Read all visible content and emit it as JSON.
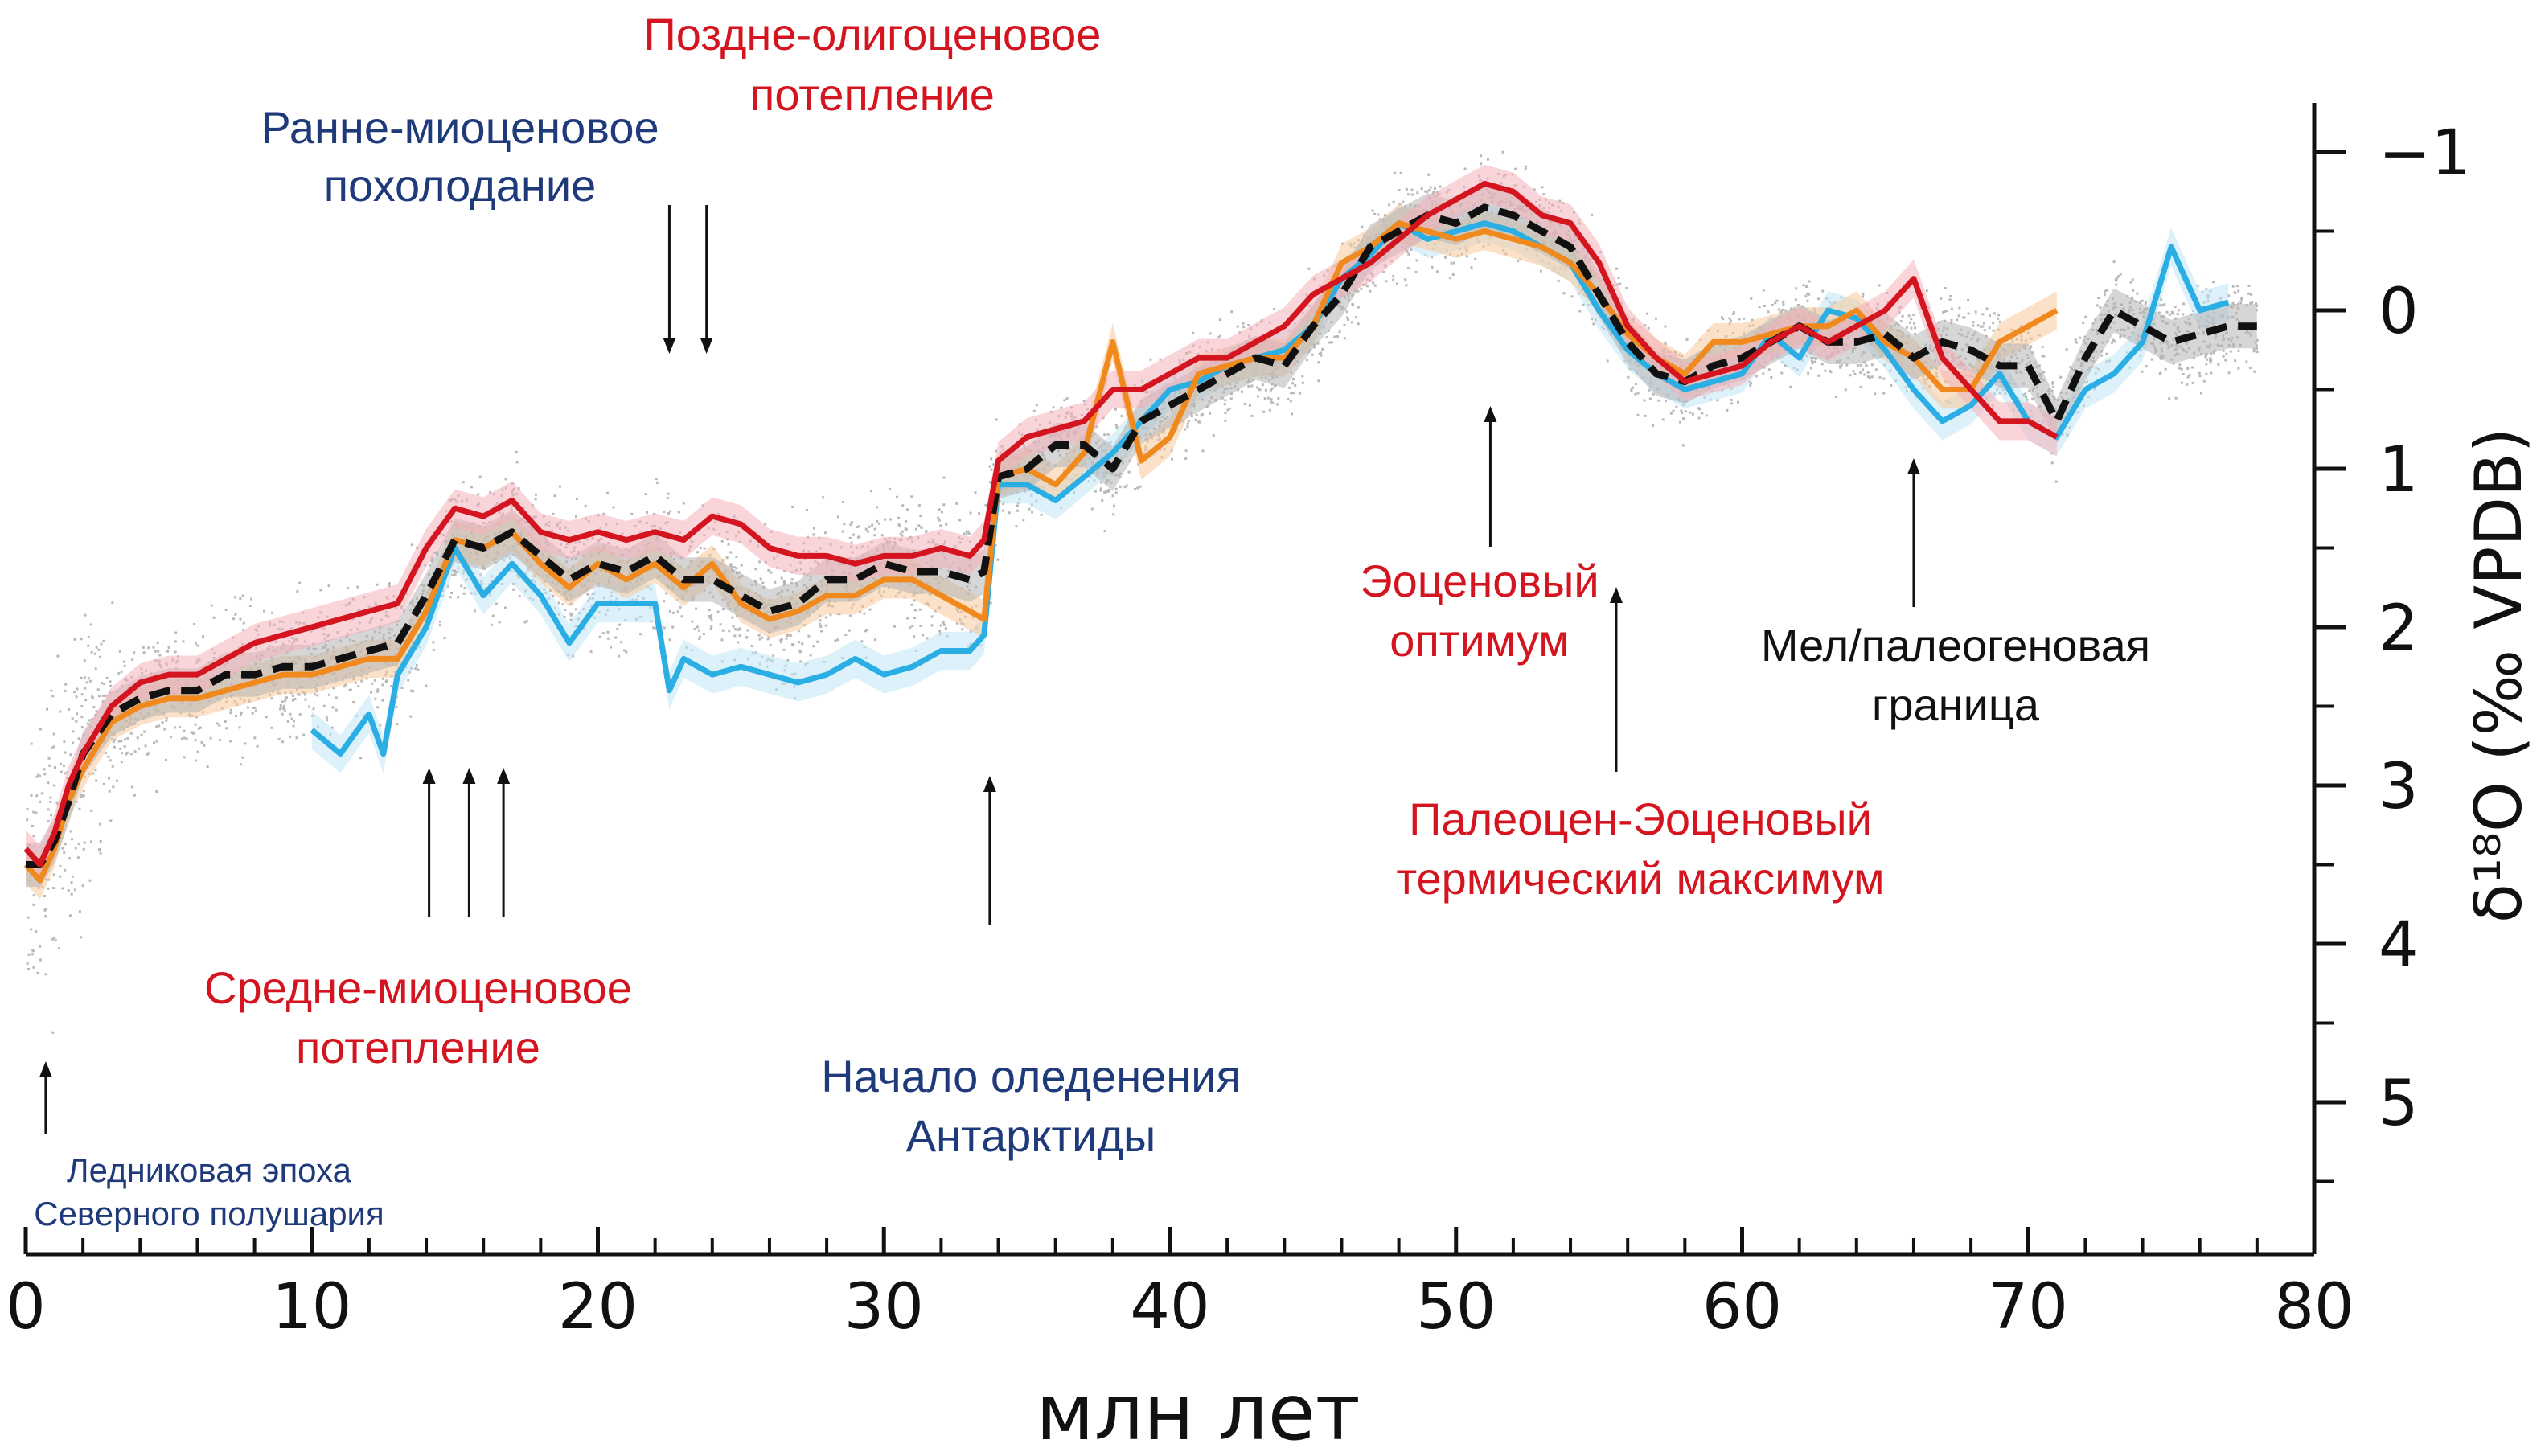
{
  "colors": {
    "red": "#d4141e",
    "black": "#111111",
    "orange": "#f08a1e",
    "cyan": "#2aaee3",
    "gray": "#a0a0a0",
    "navy": "#1f3a7a"
  },
  "chart_data": {
    "type": "line",
    "xlabel": "млн лет",
    "ylabel": "δ¹⁸O (‰ VPDB)",
    "x_ticks": [
      "0",
      "10",
      "20",
      "30",
      "40",
      "50",
      "60",
      "70",
      "80"
    ],
    "y_ticks": [
      "−1",
      "0",
      "1",
      "2",
      "3",
      "4",
      "5"
    ],
    "xlim": [
      0,
      80
    ],
    "ylim": [
      -1.5,
      5.9
    ],
    "y_inverted": true,
    "series": [
      {
        "color": "red",
        "x": [
          0,
          0.5,
          1,
          1.5,
          2,
          3,
          4,
          5,
          6,
          7,
          8,
          9,
          10,
          11,
          12,
          13,
          14,
          15,
          16,
          17,
          18,
          19,
          20,
          21,
          22,
          23,
          24,
          25,
          26,
          27,
          28,
          29,
          30,
          31,
          32,
          33,
          33.5,
          34,
          35,
          36,
          37,
          38,
          39,
          40,
          41,
          42,
          43,
          44,
          45,
          46,
          47,
          48,
          49,
          50,
          51,
          52,
          53,
          54,
          55,
          56,
          57,
          58,
          59,
          60,
          61,
          62,
          63,
          64,
          65,
          66,
          67,
          68,
          69,
          70,
          71
        ],
        "y": [
          3.4,
          3.5,
          3.3,
          3.0,
          2.8,
          2.5,
          2.35,
          2.3,
          2.3,
          2.2,
          2.1,
          2.05,
          2.0,
          1.95,
          1.9,
          1.85,
          1.5,
          1.25,
          1.3,
          1.2,
          1.4,
          1.45,
          1.4,
          1.45,
          1.4,
          1.45,
          1.3,
          1.35,
          1.5,
          1.55,
          1.55,
          1.6,
          1.55,
          1.55,
          1.5,
          1.55,
          1.45,
          0.95,
          0.8,
          0.75,
          0.7,
          0.5,
          0.5,
          0.4,
          0.3,
          0.3,
          0.2,
          0.1,
          -0.1,
          -0.2,
          -0.3,
          -0.45,
          -0.6,
          -0.7,
          -0.8,
          -0.75,
          -0.6,
          -0.55,
          -0.3,
          0.1,
          0.3,
          0.45,
          0.4,
          0.35,
          0.2,
          0.1,
          0.2,
          0.1,
          0.0,
          -0.2,
          0.3,
          0.5,
          0.7,
          0.7,
          0.8
        ]
      },
      {
        "color": "black",
        "x": [
          0,
          0.5,
          1,
          1.5,
          2,
          3,
          4,
          5,
          6,
          7,
          8,
          9,
          10,
          11,
          12,
          13,
          14,
          15,
          16,
          17,
          18,
          19,
          20,
          21,
          22,
          23,
          24,
          25,
          26,
          27,
          28,
          29,
          30,
          31,
          32,
          33,
          33.5,
          34,
          35,
          36,
          37,
          38,
          39,
          40,
          41,
          42,
          43,
          44,
          45,
          46,
          47,
          48,
          49,
          50,
          51,
          52,
          53,
          54,
          55,
          56,
          57,
          58,
          59,
          60,
          61,
          62,
          63,
          64,
          65,
          66,
          67,
          68,
          69,
          70,
          71,
          72,
          73,
          74,
          75,
          76,
          77,
          78
        ],
        "y": [
          3.5,
          3.5,
          3.35,
          3.1,
          2.8,
          2.55,
          2.45,
          2.4,
          2.4,
          2.3,
          2.3,
          2.25,
          2.25,
          2.2,
          2.15,
          2.1,
          1.8,
          1.45,
          1.5,
          1.4,
          1.55,
          1.7,
          1.6,
          1.65,
          1.55,
          1.7,
          1.7,
          1.8,
          1.9,
          1.85,
          1.7,
          1.7,
          1.6,
          1.65,
          1.65,
          1.7,
          1.65,
          1.05,
          1.0,
          0.85,
          0.85,
          1.0,
          0.7,
          0.6,
          0.5,
          0.4,
          0.3,
          0.35,
          0.1,
          -0.1,
          -0.4,
          -0.5,
          -0.6,
          -0.55,
          -0.65,
          -0.6,
          -0.5,
          -0.4,
          -0.1,
          0.2,
          0.4,
          0.45,
          0.35,
          0.3,
          0.2,
          0.1,
          0.2,
          0.2,
          0.15,
          0.3,
          0.2,
          0.25,
          0.35,
          0.35,
          0.7,
          0.3,
          0.0,
          0.1,
          0.2,
          0.15,
          0.1,
          0.1
        ]
      },
      {
        "color": "orange",
        "x": [
          0,
          0.5,
          1,
          1.5,
          2,
          3,
          4,
          5,
          6,
          7,
          8,
          9,
          10,
          11,
          12,
          13,
          14,
          15,
          16,
          17,
          18,
          19,
          20,
          21,
          22,
          23,
          24,
          25,
          26,
          27,
          28,
          29,
          30,
          31,
          32,
          33,
          33.5,
          34,
          35,
          36,
          37,
          38,
          39,
          40,
          41,
          42,
          43,
          44,
          45,
          46,
          47,
          48,
          49,
          50,
          51,
          52,
          53,
          54,
          55,
          56,
          57,
          58,
          59,
          60,
          61,
          62,
          63,
          64,
          65,
          66,
          67,
          68,
          69,
          70,
          71
        ],
        "y": [
          3.5,
          3.6,
          3.4,
          3.1,
          2.9,
          2.6,
          2.5,
          2.45,
          2.45,
          2.4,
          2.35,
          2.3,
          2.3,
          2.25,
          2.2,
          2.2,
          1.9,
          1.45,
          1.5,
          1.4,
          1.6,
          1.75,
          1.6,
          1.7,
          1.6,
          1.75,
          1.6,
          1.85,
          1.95,
          1.9,
          1.8,
          1.8,
          1.7,
          1.7,
          1.8,
          1.9,
          1.95,
          1.05,
          1.0,
          1.1,
          0.9,
          0.2,
          0.95,
          0.8,
          0.4,
          0.35,
          0.3,
          0.3,
          0.1,
          -0.3,
          -0.4,
          -0.55,
          -0.5,
          -0.45,
          -0.5,
          -0.45,
          -0.4,
          -0.3,
          -0.1,
          0.15,
          0.3,
          0.4,
          0.2,
          0.2,
          0.15,
          0.1,
          0.1,
          0.0,
          0.2,
          0.3,
          0.5,
          0.5,
          0.2,
          0.1,
          0.0
        ]
      },
      {
        "color": "cyan",
        "x": [
          10,
          11,
          12,
          12.5,
          13,
          14,
          15,
          16,
          17,
          18,
          19,
          20,
          21,
          22,
          22.5,
          23,
          24,
          25,
          26,
          27,
          28,
          29,
          30,
          31,
          32,
          33,
          33.5,
          34,
          35,
          36,
          37,
          38,
          39,
          40,
          41,
          42,
          43,
          44,
          45,
          46,
          47,
          48,
          49,
          50,
          51,
          52,
          53,
          54,
          55,
          56,
          57,
          58,
          59,
          60,
          61,
          62,
          63,
          64,
          65,
          66,
          67,
          68,
          69,
          70,
          71,
          72,
          73,
          74,
          75,
          76,
          77
        ],
        "y": [
          2.65,
          2.8,
          2.55,
          2.8,
          2.3,
          2.0,
          1.5,
          1.8,
          1.6,
          1.8,
          2.1,
          1.85,
          1.85,
          1.85,
          2.4,
          2.2,
          2.3,
          2.25,
          2.3,
          2.35,
          2.3,
          2.2,
          2.3,
          2.25,
          2.15,
          2.15,
          2.05,
          1.1,
          1.1,
          1.2,
          1.05,
          0.9,
          0.7,
          0.5,
          0.45,
          0.35,
          0.3,
          0.25,
          0.1,
          -0.2,
          -0.35,
          -0.55,
          -0.45,
          -0.5,
          -0.55,
          -0.5,
          -0.4,
          -0.3,
          0.0,
          0.25,
          0.4,
          0.5,
          0.45,
          0.4,
          0.15,
          0.3,
          0.0,
          0.05,
          0.25,
          0.5,
          0.7,
          0.6,
          0.4,
          0.7,
          0.8,
          0.5,
          0.4,
          0.2,
          -0.4,
          0.0,
          -0.05
        ]
      }
    ],
    "annotations": {
      "late_oligocene_warming": "Поздне-олигоценовое потепление",
      "early_miocene_cooling": "Ранне-миоценовое похолодание",
      "mid_miocene_warming": "Средне-миоценовое потепление",
      "antarctic_glaciation": "Начало оледенения Антарктиды",
      "nh_glaciation": "Ледниковая эпоха Северного полушария",
      "eocene_optimum": "Эоценовый оптимум",
      "petm": "Палеоцен-Эоценовый термический максимум",
      "kpg_boundary": "Мел/палеогеновая граница"
    }
  }
}
